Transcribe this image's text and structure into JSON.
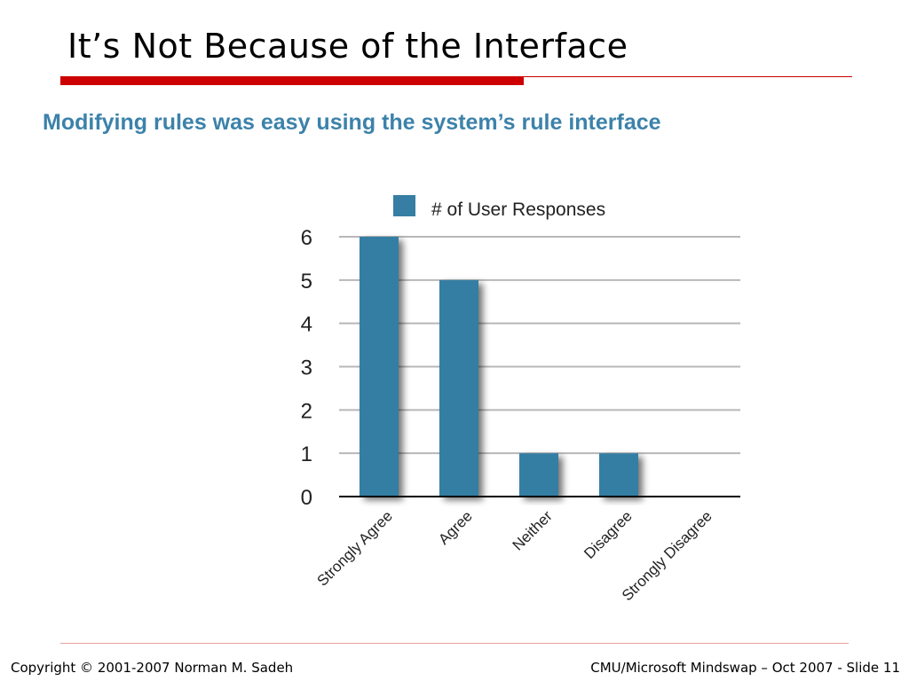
{
  "slide": {
    "title": "It’s Not Because of the Interface",
    "footer_left": "Copyright © 2001-2007 Norman M. Sadeh",
    "footer_right": "CMU/Microsoft Mindswap – Oct  2007 - Slide 11"
  },
  "colors": {
    "accent_red": "#cc0000",
    "heading_blue": "#3c82aa",
    "bar_fill": "#367ea3"
  },
  "chart_data": {
    "type": "bar",
    "title": "Modifying rules was easy using the system’s rule interface",
    "categories": [
      "Strongly Agree",
      "Agree",
      "Neither",
      "Disagree",
      "Strongly Disagree"
    ],
    "series": [
      {
        "name": "# of User Responses",
        "values": [
          6,
          5,
          1,
          1,
          0
        ]
      }
    ],
    "y_ticks": [
      "0",
      "1",
      "2",
      "3",
      "4",
      "5",
      "6"
    ],
    "ylim": [
      0,
      6
    ],
    "grid": true,
    "legend_position": "top"
  }
}
